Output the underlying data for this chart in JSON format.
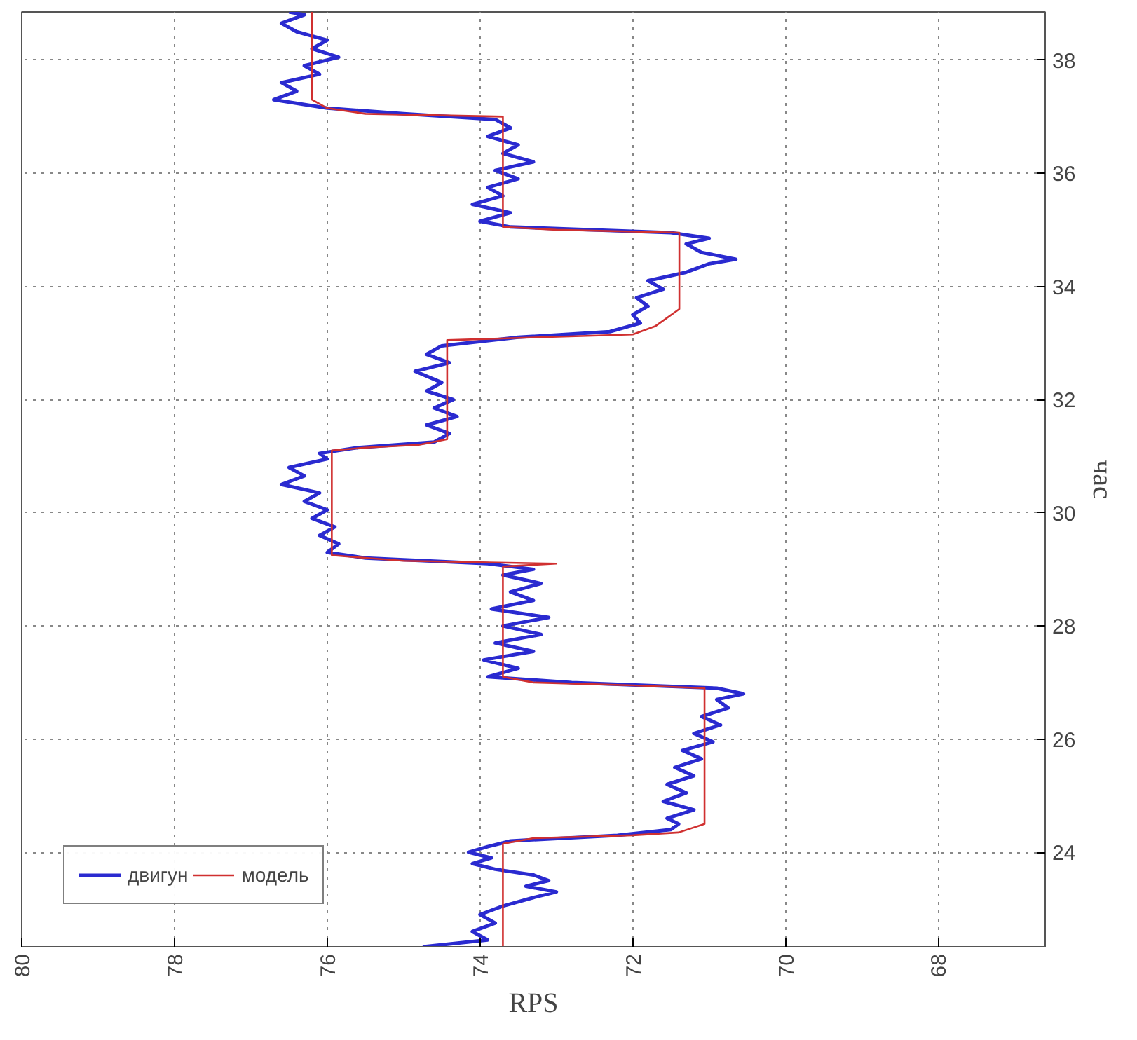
{
  "chart_data": {
    "type": "line",
    "xlabel": "RPS",
    "ylabel": "час",
    "xlim": [
      80,
      66.6
    ],
    "ylim": [
      22.33,
      38.85
    ],
    "xticks": [
      68,
      70,
      72,
      74,
      76,
      78,
      80
    ],
    "yticks": [
      24,
      26,
      28,
      30,
      32,
      34,
      36,
      38
    ],
    "grid": true,
    "legend": "bottom left",
    "line_style": "solid",
    "marker": "none",
    "series": [
      {
        "name": "двигун",
        "color": "#2a2ad0",
        "values": [
          22.33,
          22.45,
          22.6,
          22.75,
          22.9,
          23.05,
          23.2,
          23.3,
          23.4,
          23.5,
          23.6,
          23.7,
          23.8,
          23.9,
          24.0,
          24.1,
          24.2,
          24.3,
          24.4,
          24.5,
          24.6,
          24.75,
          24.9,
          25.05,
          25.2,
          25.35,
          25.5,
          25.65,
          25.8,
          25.95,
          26.1,
          26.25,
          26.4,
          26.55,
          26.7,
          26.8,
          26.9,
          27.0,
          27.1,
          27.25,
          27.4,
          27.55,
          27.7,
          27.85,
          28.0,
          28.15,
          28.3,
          28.45,
          28.6,
          28.75,
          28.9,
          29.0,
          29.1,
          29.2,
          29.3,
          29.45,
          29.6,
          29.75,
          29.9,
          30.05,
          30.2,
          30.35,
          30.5,
          30.65,
          30.8,
          30.95,
          31.05,
          31.15,
          31.25,
          31.4,
          31.55,
          31.7,
          31.85,
          32.0,
          32.15,
          32.3,
          32.5,
          32.65,
          32.8,
          32.95,
          33.1,
          33.2,
          33.35,
          33.5,
          33.65,
          33.8,
          33.95,
          34.1,
          34.25,
          34.4,
          34.48,
          34.6,
          34.75,
          34.85,
          34.95,
          35.05,
          35.15,
          35.3,
          35.45,
          35.6,
          35.75,
          35.9,
          36.05,
          36.2,
          36.35,
          36.5,
          36.65,
          36.8,
          36.95,
          37.05,
          37.15,
          37.3,
          37.45,
          37.6,
          37.75,
          37.9,
          38.05,
          38.2,
          38.35,
          38.5,
          38.65,
          38.8,
          38.85
        ],
        "x": [
          74.75,
          73.9,
          74.1,
          73.8,
          74.0,
          73.7,
          73.3,
          73.0,
          73.4,
          73.1,
          73.3,
          73.8,
          74.1,
          73.85,
          74.15,
          73.9,
          73.6,
          72.2,
          71.5,
          71.4,
          71.55,
          71.2,
          71.6,
          71.3,
          71.55,
          71.2,
          71.45,
          71.1,
          71.35,
          70.95,
          71.2,
          70.85,
          71.1,
          70.75,
          70.9,
          70.55,
          70.9,
          72.8,
          73.9,
          73.5,
          73.95,
          73.3,
          73.8,
          73.2,
          73.7,
          73.1,
          73.85,
          73.3,
          73.6,
          73.2,
          73.7,
          73.3,
          73.9,
          75.5,
          76.0,
          75.85,
          76.1,
          75.9,
          76.2,
          76.0,
          76.3,
          76.1,
          76.6,
          76.3,
          76.5,
          76.0,
          76.1,
          75.6,
          74.6,
          74.4,
          74.7,
          74.3,
          74.6,
          74.35,
          74.7,
          74.5,
          74.85,
          74.4,
          74.7,
          74.5,
          73.5,
          72.3,
          71.9,
          72.0,
          71.8,
          71.95,
          71.6,
          71.8,
          71.3,
          71.0,
          70.65,
          71.1,
          71.3,
          71.0,
          71.5,
          73.6,
          74.0,
          73.6,
          74.1,
          73.7,
          73.9,
          73.5,
          73.8,
          73.3,
          73.7,
          73.5,
          73.9,
          73.6,
          73.8,
          75.0,
          76.0,
          76.7,
          76.4,
          76.6,
          76.1,
          76.3,
          75.85,
          76.2,
          76.0,
          76.4,
          76.6,
          76.3,
          76.5
        ]
      },
      {
        "name": "модель",
        "color": "#d03030",
        "values": [
          22.33,
          24.15,
          24.25,
          24.3,
          24.35,
          24.5,
          26.9,
          26.95,
          27.0,
          27.1,
          29.05,
          29.1,
          29.15,
          29.25,
          31.1,
          31.15,
          31.2,
          31.3,
          33.05,
          33.1,
          33.15,
          33.3,
          33.6,
          34.95,
          35.0,
          35.05,
          37.0,
          37.05,
          37.15,
          37.3,
          38.85
        ],
        "x": [
          73.7,
          73.7,
          73.3,
          72.0,
          71.4,
          71.06,
          71.06,
          72.0,
          73.3,
          73.7,
          73.7,
          73.0,
          75.0,
          75.94,
          75.94,
          75.5,
          74.8,
          74.43,
          74.43,
          73.2,
          72.0,
          71.7,
          71.39,
          71.39,
          73.0,
          73.7,
          73.7,
          75.5,
          76.0,
          76.2,
          76.2
        ]
      }
    ]
  }
}
